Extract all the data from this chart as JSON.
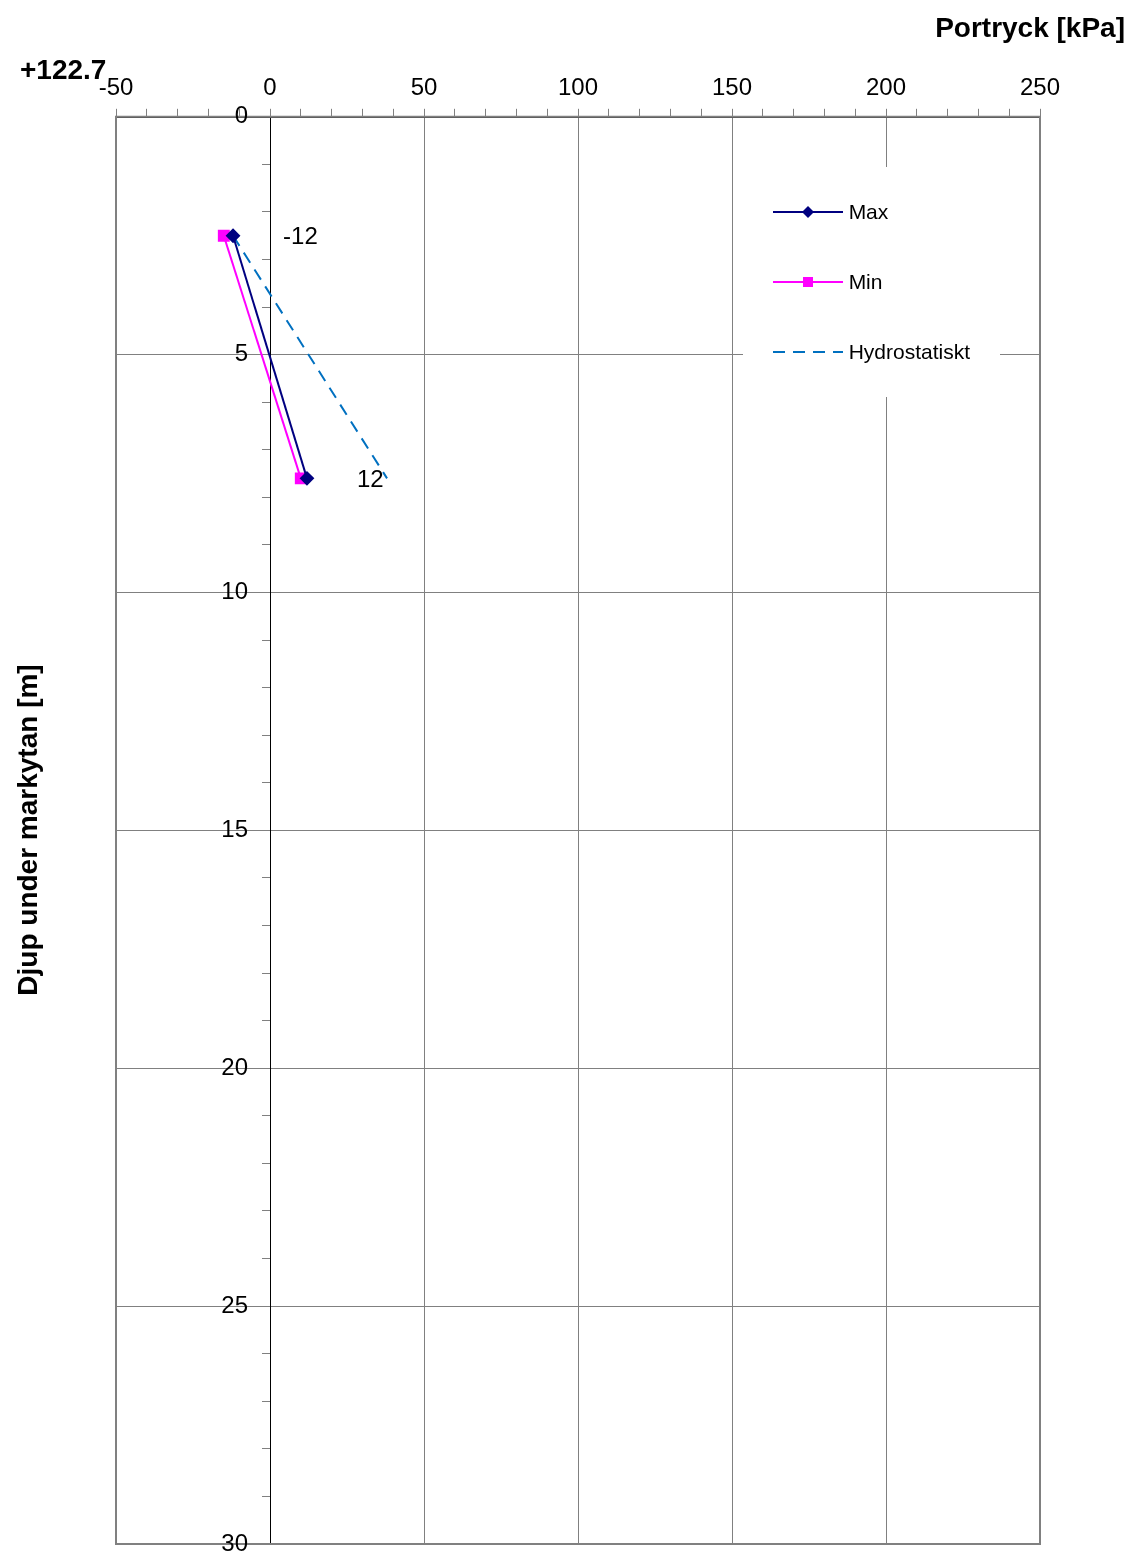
{
  "chart_data": {
    "type": "line",
    "xlabel": "Portryck [kPa]",
    "ylabel": "Djup under markytan [m]",
    "annotations": [
      "+122.7",
      {
        "text": "-12",
        "x": -12,
        "y": 2.5
      },
      {
        "text": "12",
        "x": 12,
        "y": 7.6
      }
    ],
    "xlim": [
      -50,
      250
    ],
    "xticks": [
      -50,
      {
        "value": -40,
        "label": null
      },
      {
        "value": -30,
        "label": null
      },
      {
        "value": -20,
        "label": null
      },
      {
        "value": -10,
        "label": null
      },
      0,
      {
        "value": 10,
        "label": null
      },
      {
        "value": 20,
        "label": null
      },
      {
        "value": 30,
        "label": null
      },
      {
        "value": 40,
        "label": null
      },
      50,
      {
        "value": 60,
        "label": null
      },
      {
        "value": 70,
        "label": null
      },
      {
        "value": 80,
        "label": null
      },
      {
        "value": 90,
        "label": null
      },
      100,
      {
        "value": 110,
        "label": null
      },
      {
        "value": 120,
        "label": null
      },
      {
        "value": 130,
        "label": null
      },
      {
        "value": 140,
        "label": null
      },
      150,
      {
        "value": 160,
        "label": null
      },
      {
        "value": 170,
        "label": null
      },
      {
        "value": 180,
        "label": null
      },
      {
        "value": 190,
        "label": null
      },
      200,
      {
        "value": 210,
        "label": null
      },
      {
        "value": 220,
        "label": null
      },
      {
        "value": 230,
        "label": null
      },
      {
        "value": 240,
        "label": null
      },
      250
    ],
    "ylim": [
      30,
      0
    ],
    "yticks": [
      0,
      {
        "value": 1,
        "label": null
      },
      {
        "value": 2,
        "label": null
      },
      {
        "value": 3,
        "label": null
      },
      {
        "value": 4,
        "label": null
      },
      5,
      {
        "value": 6,
        "label": null
      },
      {
        "value": 7,
        "label": null
      },
      {
        "value": 8,
        "label": null
      },
      {
        "value": 9,
        "label": null
      },
      10,
      {
        "value": 11,
        "label": null
      },
      {
        "value": 12,
        "label": null
      },
      {
        "value": 13,
        "label": null
      },
      {
        "value": 14,
        "label": null
      },
      15,
      {
        "value": 16,
        "label": null
      },
      {
        "value": 17,
        "label": null
      },
      {
        "value": 18,
        "label": null
      },
      {
        "value": 19,
        "label": null
      },
      20,
      {
        "value": 21,
        "label": null
      },
      {
        "value": 22,
        "label": null
      },
      {
        "value": 23,
        "label": null
      },
      {
        "value": 24,
        "label": null
      },
      25,
      {
        "value": 26,
        "label": null
      },
      {
        "value": 27,
        "label": null
      },
      {
        "value": 28,
        "label": null
      },
      {
        "value": 29,
        "label": null
      },
      30
    ],
    "grid": true,
    "legend": "top right",
    "series": [
      {
        "name": "Max",
        "color": "#000080",
        "x": [
          -12,
          12
        ],
        "values": [
          2.5,
          7.6
        ],
        "marker": "diamond",
        "line_style": "solid"
      },
      {
        "name": "Min",
        "color": "#ff00ff",
        "x": [
          -15,
          10
        ],
        "values": [
          2.5,
          7.6
        ],
        "marker": "square",
        "line_style": "solid"
      },
      {
        "name": "Hydrostatiskt",
        "color": "#0070c0",
        "x": [
          -12,
          38
        ],
        "values": [
          2.5,
          7.6
        ],
        "marker": "none",
        "line_style": "dashed"
      }
    ]
  }
}
